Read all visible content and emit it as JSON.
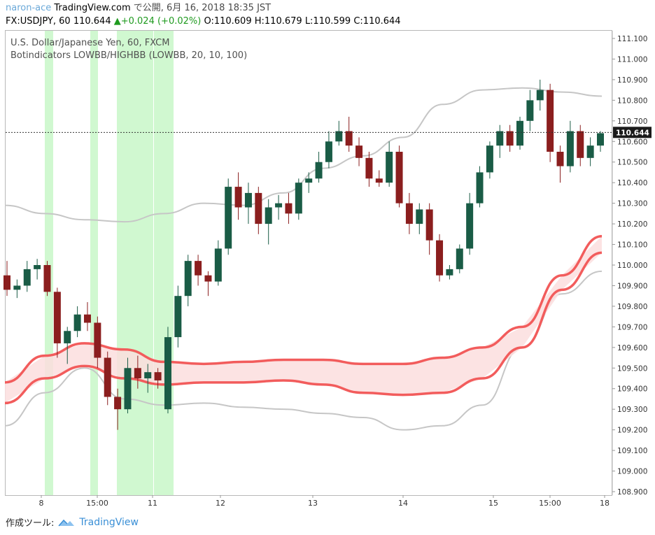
{
  "header": {
    "author": "naron-ace",
    "platform": "TradingView.com",
    "published": "で公開, 6月 16, 2018 18:35 JST"
  },
  "ohlc_line": {
    "symbol": "FX:USDJPY, 60",
    "last": "110.644",
    "change": "▲+0.024 (+0.02%)",
    "o": "O:110.609",
    "h": "H:110.679",
    "l": "L:110.599",
    "c": "C:110.644"
  },
  "legend": {
    "line1": "U.S. Dollar/Japanese Yen, 60, FXCM",
    "line2": "Botindicators LOWBB/HIGHBB (LOWBB, 20, 10, 100)"
  },
  "price_label": "110.644",
  "footer": {
    "made_with": "作成ツール:",
    "brand": "TradingView"
  },
  "colors": {
    "up": "#1a5c46",
    "down": "#8b1e1e",
    "band": "#f25c5c",
    "band_fill": "#fcdede",
    "bb": "#c6c6c6",
    "highlight": "#c8f7c8"
  },
  "chart_data": {
    "type": "candlestick",
    "symbol": "USDJPY",
    "timeframe": "60",
    "ylim": [
      108.9,
      111.15
    ],
    "y_ticks": [
      "111.100",
      "111.000",
      "110.900",
      "110.800",
      "110.700",
      "110.600",
      "110.500",
      "110.400",
      "110.300",
      "110.200",
      "110.100",
      "110.000",
      "109.900",
      "109.800",
      "109.700",
      "109.600",
      "109.500",
      "109.400",
      "109.300",
      "109.200",
      "109.100",
      "109.000",
      "108.900"
    ],
    "x_ticks": [
      "8",
      "15:00",
      "11",
      "12",
      "13",
      "14",
      "15",
      "15:00",
      "18"
    ],
    "current_price": 110.644,
    "candles_sampled": [
      [
        109.95,
        110.02,
        109.85,
        109.88
      ],
      [
        109.88,
        109.93,
        109.84,
        109.9
      ],
      [
        109.9,
        110.02,
        109.87,
        109.98
      ],
      [
        109.98,
        110.03,
        109.93,
        110.0
      ],
      [
        110.0,
        110.02,
        109.85,
        109.87
      ],
      [
        109.87,
        109.89,
        109.55,
        109.62
      ],
      [
        109.62,
        109.7,
        109.52,
        109.68
      ],
      [
        109.68,
        109.8,
        109.65,
        109.76
      ],
      [
        109.76,
        109.82,
        109.68,
        109.72
      ],
      [
        109.72,
        109.75,
        109.5,
        109.55
      ],
      [
        109.55,
        109.58,
        109.32,
        109.36
      ],
      [
        109.36,
        109.4,
        109.2,
        109.3
      ],
      [
        109.3,
        109.55,
        109.28,
        109.5
      ],
      [
        109.5,
        109.56,
        109.4,
        109.45
      ],
      [
        109.45,
        109.52,
        109.38,
        109.48
      ],
      [
        109.48,
        109.5,
        109.4,
        109.44
      ],
      [
        109.3,
        109.7,
        109.28,
        109.65
      ],
      [
        109.65,
        109.9,
        109.6,
        109.85
      ],
      [
        109.85,
        110.05,
        109.8,
        110.02
      ],
      [
        110.02,
        110.05,
        109.9,
        109.95
      ],
      [
        109.95,
        109.97,
        109.85,
        109.92
      ],
      [
        109.92,
        110.12,
        109.9,
        110.08
      ],
      [
        110.08,
        110.42,
        110.05,
        110.38
      ],
      [
        110.38,
        110.45,
        110.22,
        110.28
      ],
      [
        110.28,
        110.4,
        110.2,
        110.35
      ],
      [
        110.35,
        110.38,
        110.15,
        110.2
      ],
      [
        110.2,
        110.32,
        110.1,
        110.28
      ],
      [
        110.28,
        110.34,
        110.22,
        110.3
      ],
      [
        110.3,
        110.35,
        110.2,
        110.25
      ],
      [
        110.25,
        110.42,
        110.22,
        110.4
      ],
      [
        110.4,
        110.45,
        110.35,
        110.42
      ],
      [
        110.42,
        110.55,
        110.4,
        110.5
      ],
      [
        110.5,
        110.65,
        110.47,
        110.6
      ],
      [
        110.6,
        110.7,
        110.58,
        110.65
      ],
      [
        110.65,
        110.72,
        110.55,
        110.58
      ],
      [
        110.58,
        110.62,
        110.48,
        110.52
      ],
      [
        110.52,
        110.55,
        110.38,
        110.42
      ],
      [
        110.42,
        110.46,
        110.38,
        110.4
      ],
      [
        110.4,
        110.6,
        110.38,
        110.55
      ],
      [
        110.55,
        110.58,
        110.28,
        110.3
      ],
      [
        110.3,
        110.35,
        110.15,
        110.2
      ],
      [
        110.2,
        110.3,
        110.15,
        110.27
      ],
      [
        110.27,
        110.3,
        110.05,
        110.12
      ],
      [
        110.12,
        110.15,
        109.92,
        109.95
      ],
      [
        109.95,
        110.0,
        109.93,
        109.98
      ],
      [
        109.98,
        110.1,
        109.96,
        110.08
      ],
      [
        110.08,
        110.35,
        110.05,
        110.3
      ],
      [
        110.3,
        110.48,
        110.28,
        110.45
      ],
      [
        110.45,
        110.6,
        110.42,
        110.58
      ],
      [
        110.58,
        110.68,
        110.52,
        110.65
      ],
      [
        110.65,
        110.68,
        110.55,
        110.58
      ],
      [
        110.58,
        110.72,
        110.56,
        110.7
      ],
      [
        110.7,
        110.85,
        110.65,
        110.8
      ],
      [
        110.8,
        110.9,
        110.75,
        110.85
      ],
      [
        110.85,
        110.88,
        110.5,
        110.55
      ],
      [
        110.55,
        110.58,
        110.4,
        110.48
      ],
      [
        110.48,
        110.7,
        110.45,
        110.65
      ],
      [
        110.65,
        110.68,
        110.48,
        110.52
      ],
      [
        110.52,
        110.62,
        110.48,
        110.58
      ],
      [
        110.58,
        110.65,
        110.55,
        110.64
      ]
    ],
    "bands": {
      "highbb_upper": [
        110.29,
        110.25,
        110.22,
        110.21,
        110.25,
        110.3,
        110.29,
        110.35,
        110.47,
        110.53,
        110.62,
        110.78,
        110.85,
        110.86,
        110.84,
        110.82
      ],
      "highbb_lower": [
        109.22,
        109.38,
        109.5,
        109.35,
        109.32,
        109.33,
        109.31,
        109.3,
        109.28,
        109.26,
        109.2,
        109.22,
        109.32,
        109.6,
        109.86,
        109.97
      ],
      "lowbb_upper": [
        109.43,
        109.56,
        109.62,
        109.59,
        109.53,
        109.52,
        109.53,
        109.54,
        109.54,
        109.52,
        109.52,
        109.55,
        109.6,
        109.7,
        109.95,
        110.14
      ],
      "lowbb_lower": [
        109.33,
        109.45,
        109.51,
        109.45,
        109.42,
        109.43,
        109.43,
        109.44,
        109.42,
        109.38,
        109.37,
        109.38,
        109.45,
        109.6,
        109.88,
        110.06
      ]
    },
    "highlight_zones": [
      "8 (early)",
      "before 15:00",
      "~15:00–11",
      "after 11"
    ]
  }
}
